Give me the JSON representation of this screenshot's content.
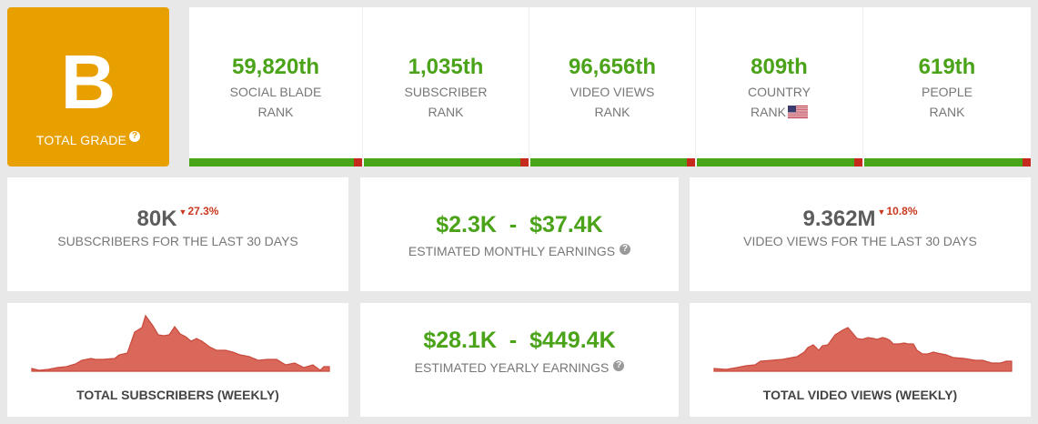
{
  "grade": {
    "letter": "B",
    "label": "TOTAL GRADE",
    "help": "?"
  },
  "ranks": [
    {
      "value": "59,820th",
      "line1": "SOCIAL BLADE",
      "line2": "RANK"
    },
    {
      "value": "1,035th",
      "line1": "SUBSCRIBER",
      "line2": "RANK"
    },
    {
      "value": "96,656th",
      "line1": "VIDEO VIEWS",
      "line2": "RANK"
    },
    {
      "value": "809th",
      "line1": "COUNTRY",
      "line2": "RANK"
    },
    {
      "value": "619th",
      "line1": "PEOPLE",
      "line2": "RANK"
    }
  ],
  "subscribers": {
    "value": "80K",
    "delta": "27.3%",
    "label": "SUBSCRIBERS FOR THE LAST 30 DAYS"
  },
  "monthly": {
    "low": "$2.3K",
    "sep": "-",
    "high": "$37.4K",
    "label": "ESTIMATED MONTHLY EARNINGS",
    "help": "?"
  },
  "views": {
    "value": "9.362M",
    "delta": "10.8%",
    "label": "VIDEO VIEWS FOR THE LAST 30 DAYS"
  },
  "yearly": {
    "low": "$28.1K",
    "sep": "-",
    "high": "$449.4K",
    "label": "ESTIMATED YEARLY EARNINGS",
    "help": "?"
  },
  "sub_chart": {
    "title": "TOTAL SUBSCRIBERS (WEEKLY)"
  },
  "views_chart": {
    "title": "TOTAL VIDEO VIEWS (WEEKLY)"
  },
  "colors": {
    "accent_green": "#4aa318",
    "grade_orange": "#e8a000",
    "down_red": "#c8381e",
    "chart_fill": "#d9685b"
  }
}
